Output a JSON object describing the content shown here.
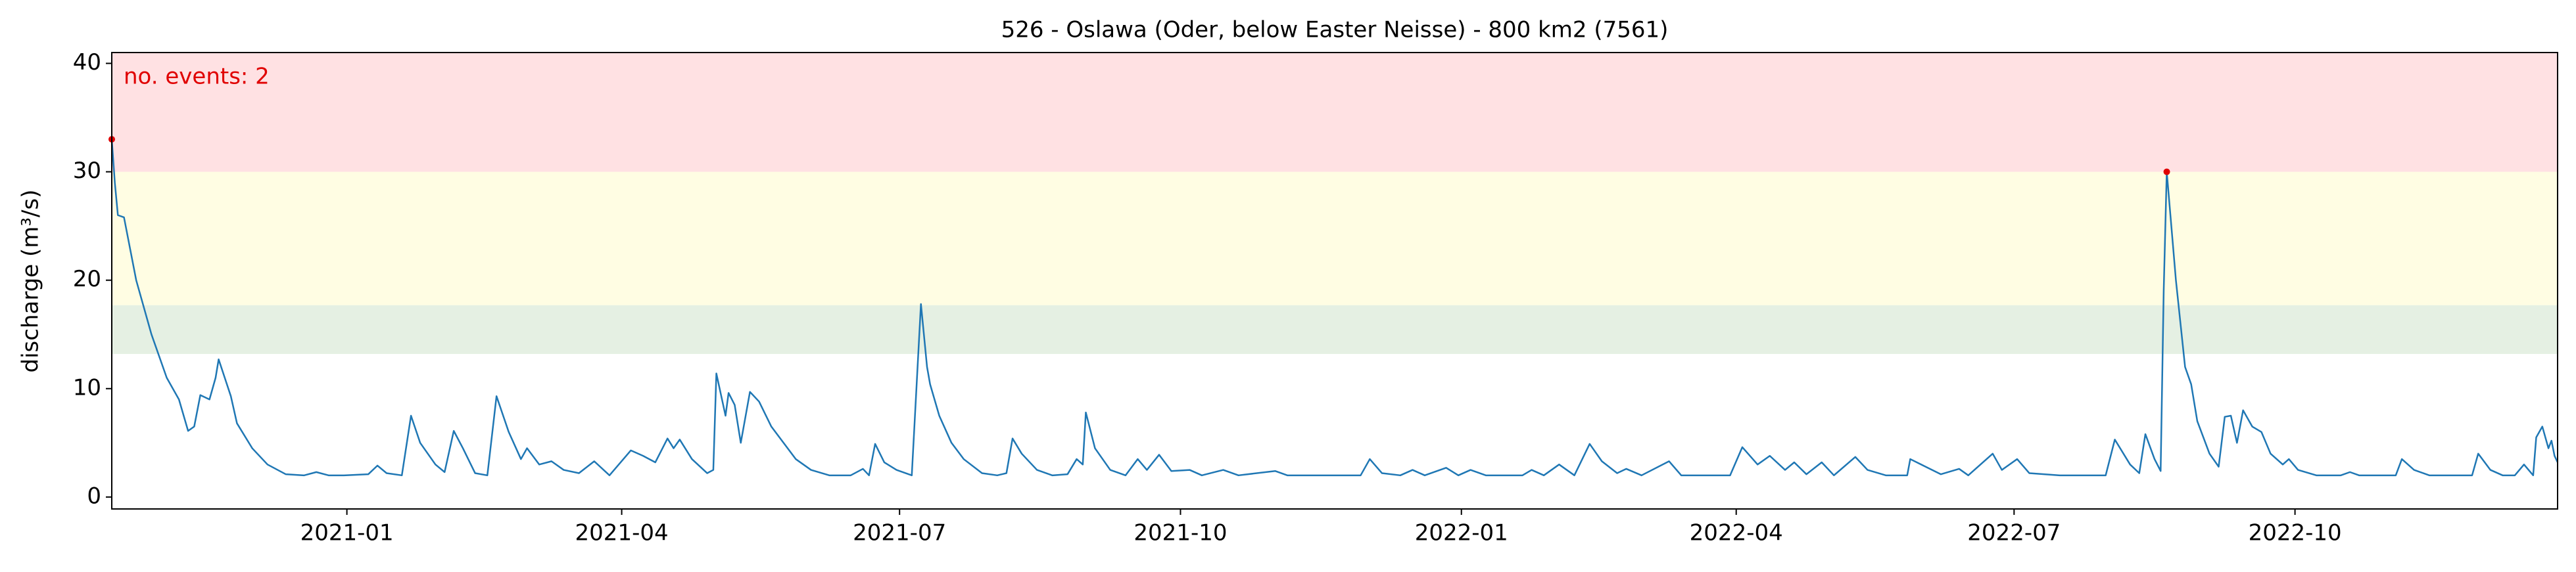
{
  "chart_data": {
    "type": "line",
    "title": "526 - Oslawa (Oder, below Easter Neisse) - 800 km2 (7561)",
    "ylabel": "discharge (m³/s)",
    "annotation": "no. events: 2",
    "annotation_color": "#e00000",
    "xlim": [
      "2020-10-16",
      "2022-12-26"
    ],
    "ylim": [
      -1.1,
      41
    ],
    "yticks": [
      0,
      10,
      20,
      30,
      40
    ],
    "xticks": [
      {
        "value": "2021-01-01",
        "label": "2021-01"
      },
      {
        "value": "2021-04-01",
        "label": "2021-04"
      },
      {
        "value": "2021-07-01",
        "label": "2021-07"
      },
      {
        "value": "2021-10-01",
        "label": "2021-10"
      },
      {
        "value": "2022-01-01",
        "label": "2022-01"
      },
      {
        "value": "2022-04-01",
        "label": "2022-04"
      },
      {
        "value": "2022-07-01",
        "label": "2022-07"
      },
      {
        "value": "2022-10-01",
        "label": "2022-10"
      }
    ],
    "bands": [
      {
        "range": [
          13.2,
          17.7
        ],
        "color": "#e5f0e3"
      },
      {
        "range": [
          17.7,
          30
        ],
        "color": "#fffde3"
      },
      {
        "range": [
          30,
          41
        ],
        "color": "#ffe1e3"
      }
    ],
    "x": [
      "2020-10-16",
      "2020-10-17",
      "2020-10-18",
      "2020-10-20",
      "2020-10-24",
      "2020-10-29",
      "2020-11-03",
      "2020-11-07",
      "2020-11-10",
      "2020-11-12",
      "2020-11-14",
      "2020-11-17",
      "2020-11-19",
      "2020-11-20",
      "2020-11-22",
      "2020-11-24",
      "2020-11-26",
      "2020-12-01",
      "2020-12-06",
      "2020-12-12",
      "2020-12-18",
      "2020-12-22",
      "2020-12-26",
      "2020-12-31",
      "2021-01-08",
      "2021-01-11",
      "2021-01-14",
      "2021-01-19",
      "2021-01-22",
      "2021-01-25",
      "2021-01-30",
      "2021-02-02",
      "2021-02-05",
      "2021-02-08",
      "2021-02-12",
      "2021-02-16",
      "2021-02-19",
      "2021-02-23",
      "2021-02-27",
      "2021-03-01",
      "2021-03-05",
      "2021-03-09",
      "2021-03-13",
      "2021-03-18",
      "2021-03-23",
      "2021-03-28",
      "2021-04-04",
      "2021-04-08",
      "2021-04-12",
      "2021-04-16",
      "2021-04-18",
      "2021-04-20",
      "2021-04-24",
      "2021-04-29",
      "2021-05-01",
      "2021-05-02",
      "2021-05-05",
      "2021-05-06",
      "2021-05-08",
      "2021-05-10",
      "2021-05-13",
      "2021-05-16",
      "2021-05-20",
      "2021-05-24",
      "2021-05-28",
      "2021-06-02",
      "2021-06-08",
      "2021-06-15",
      "2021-06-19",
      "2021-06-21",
      "2021-06-23",
      "2021-06-26",
      "2021-06-30",
      "2021-07-05",
      "2021-07-08",
      "2021-07-10",
      "2021-07-11",
      "2021-07-14",
      "2021-07-18",
      "2021-07-22",
      "2021-07-28",
      "2021-08-02",
      "2021-08-05",
      "2021-08-07",
      "2021-08-10",
      "2021-08-15",
      "2021-08-20",
      "2021-08-25",
      "2021-08-28",
      "2021-08-30",
      "2021-08-31",
      "2021-09-03",
      "2021-09-08",
      "2021-09-13",
      "2021-09-17",
      "2021-09-20",
      "2021-09-24",
      "2021-09-28",
      "2021-10-04",
      "2021-10-08",
      "2021-10-15",
      "2021-10-20",
      "2021-11-01",
      "2021-11-05",
      "2021-11-15",
      "2021-11-29",
      "2021-12-02",
      "2021-12-06",
      "2021-12-12",
      "2021-12-16",
      "2021-12-20",
      "2021-12-27",
      "2021-12-31",
      "2022-01-04",
      "2022-01-09",
      "2022-01-21",
      "2022-01-24",
      "2022-01-28",
      "2022-02-02",
      "2022-02-07",
      "2022-02-12",
      "2022-02-16",
      "2022-02-21",
      "2022-02-24",
      "2022-03-01",
      "2022-03-10",
      "2022-03-14",
      "2022-03-30",
      "2022-04-03",
      "2022-04-08",
      "2022-04-12",
      "2022-04-17",
      "2022-04-20",
      "2022-04-24",
      "2022-04-29",
      "2022-05-03",
      "2022-05-10",
      "2022-05-14",
      "2022-05-20",
      "2022-05-27",
      "2022-05-28",
      "2022-06-02",
      "2022-06-07",
      "2022-06-13",
      "2022-06-16",
      "2022-06-24",
      "2022-06-27",
      "2022-07-02",
      "2022-07-06",
      "2022-07-16",
      "2022-07-31",
      "2022-08-03",
      "2022-08-08",
      "2022-08-11",
      "2022-08-13",
      "2022-08-16",
      "2022-08-18",
      "2022-08-19",
      "2022-08-20",
      "2022-08-23",
      "2022-08-26",
      "2022-08-28",
      "2022-08-30",
      "2022-09-03",
      "2022-09-06",
      "2022-09-08",
      "2022-09-10",
      "2022-09-12",
      "2022-09-14",
      "2022-09-17",
      "2022-09-20",
      "2022-09-23",
      "2022-09-27",
      "2022-09-29",
      "2022-10-02",
      "2022-10-08",
      "2022-10-16",
      "2022-10-19",
      "2022-10-22",
      "2022-11-03",
      "2022-11-05",
      "2022-11-09",
      "2022-11-14",
      "2022-11-28",
      "2022-11-30",
      "2022-12-04",
      "2022-12-08",
      "2022-12-12",
      "2022-12-15",
      "2022-12-18",
      "2022-12-19",
      "2022-12-21",
      "2022-12-23",
      "2022-12-24",
      "2022-12-25",
      "2022-12-26"
    ],
    "series": [
      {
        "color": "#1f77b4",
        "values": [
          33,
          29,
          26,
          25.8,
          20,
          15,
          11,
          9,
          6.1,
          6.5,
          9.4,
          9,
          11,
          12.7,
          11,
          9.3,
          6.8,
          4.5,
          3,
          2.1,
          2,
          2.3,
          2,
          2,
          2.1,
          2.9,
          2.2,
          2,
          7.5,
          5,
          3,
          2.3,
          6.1,
          4.5,
          2.2,
          2,
          9.3,
          6,
          3.5,
          4.5,
          3,
          3.3,
          2.5,
          2.2,
          3.3,
          2,
          4.3,
          3.8,
          3.2,
          5.4,
          4.5,
          5.3,
          3.5,
          2.2,
          2.5,
          11.4,
          7.5,
          9.6,
          8.5,
          5,
          9.7,
          8.8,
          6.5,
          5,
          3.5,
          2.5,
          2,
          2,
          2.6,
          2,
          4.9,
          3.2,
          2.5,
          2,
          17.8,
          12,
          10.4,
          7.5,
          5,
          3.5,
          2.2,
          2,
          2.2,
          5.4,
          4,
          2.5,
          2,
          2.1,
          3.5,
          3,
          7.8,
          4.5,
          2.5,
          2,
          3.5,
          2.5,
          3.9,
          2.4,
          2.5,
          2,
          2.5,
          2,
          2.4,
          2,
          2,
          2,
          3.5,
          2.2,
          2,
          2.5,
          2,
          2.7,
          2,
          2.5,
          2,
          2,
          2.5,
          2,
          3,
          2,
          4.9,
          3.3,
          2.2,
          2.6,
          2,
          3.3,
          2,
          2,
          4.6,
          3,
          3.8,
          2.5,
          3.2,
          2.1,
          3.2,
          2,
          3.7,
          2.5,
          2,
          2,
          3.5,
          2.8,
          2.1,
          2.6,
          2,
          4,
          2.5,
          3.5,
          2.2,
          2,
          2,
          5.3,
          3,
          2.2,
          5.8,
          3.5,
          2.4,
          19,
          30,
          20,
          12,
          10.4,
          7,
          4,
          2.8,
          7.4,
          7.5,
          5,
          8,
          6.5,
          6,
          4,
          3,
          3.5,
          2.5,
          2,
          2,
          2.3,
          2,
          2,
          3.5,
          2.5,
          2,
          2,
          4,
          2.5,
          2,
          2,
          3,
          2,
          5.5,
          6.5,
          4.5,
          5.2,
          3.8,
          3.2
        ]
      }
    ],
    "events": {
      "color": "#e00000",
      "x": [
        "2020-10-16",
        "2022-08-20"
      ],
      "values": [
        33,
        30
      ]
    }
  }
}
